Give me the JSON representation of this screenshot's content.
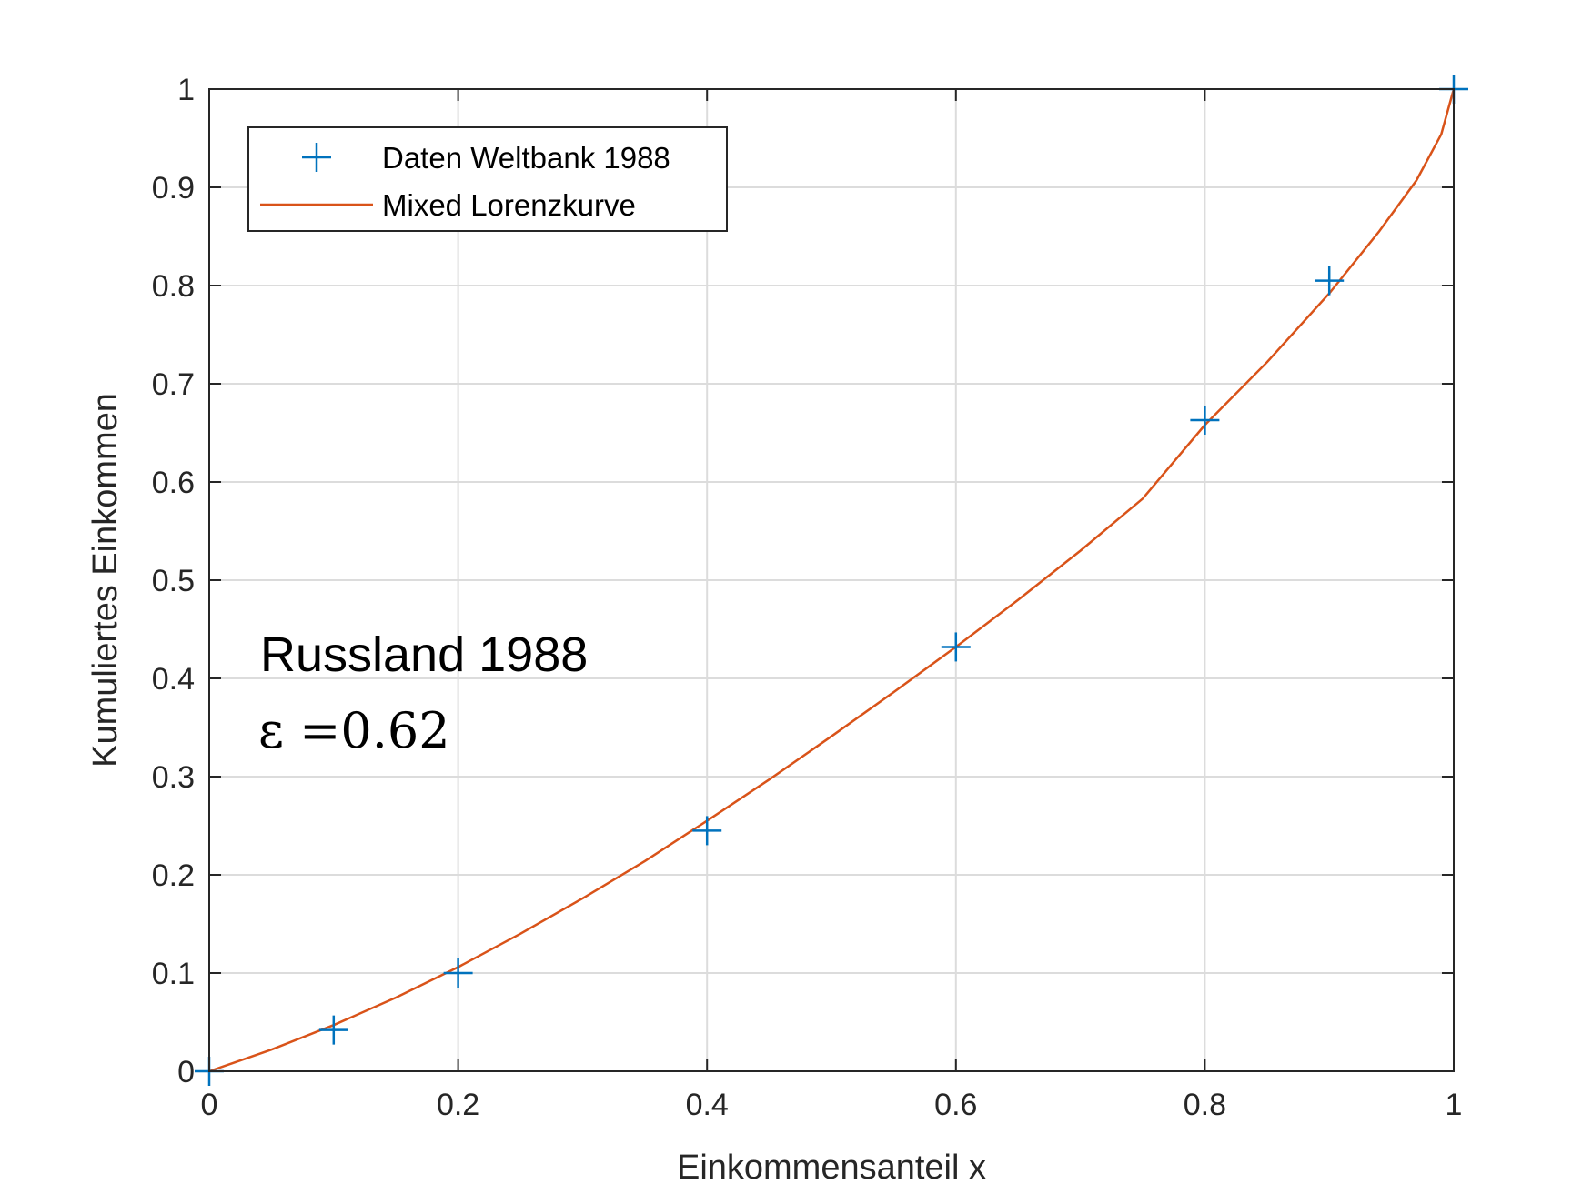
{
  "chart_data": {
    "type": "line",
    "xlabel": "Einkommensanteil x",
    "ylabel": "Kumuliertes Einkommen",
    "xlim": [
      0,
      1
    ],
    "ylim": [
      0,
      1
    ],
    "xticks": [
      0,
      0.2,
      0.4,
      0.6,
      0.8,
      1
    ],
    "xtick_labels": [
      "0",
      "0.2",
      "0.4",
      "0.6",
      "0.8",
      "1"
    ],
    "yticks": [
      0,
      0.1,
      0.2,
      0.3,
      0.4,
      0.5,
      0.6,
      0.7,
      0.8,
      0.9,
      1
    ],
    "ytick_labels": [
      "0",
      "0.1",
      "0.2",
      "0.3",
      "0.4",
      "0.5",
      "0.6",
      "0.7",
      "0.8",
      "0.9",
      "1"
    ],
    "grid": true,
    "legend_position": "top-left",
    "series": [
      {
        "name": "Daten Weltbank 1988",
        "kind": "scatter",
        "marker": "plus",
        "color": "#0072BD",
        "x": [
          0,
          0.1,
          0.2,
          0.4,
          0.6,
          0.8,
          0.9,
          1.0
        ],
        "y": [
          0,
          0.042,
          0.1,
          0.245,
          0.432,
          0.663,
          0.805,
          1.0
        ]
      },
      {
        "name": "Mixed Lorenzkurve",
        "kind": "line",
        "color": "#D95319",
        "x": [
          0,
          0.05,
          0.1,
          0.15,
          0.2,
          0.25,
          0.3,
          0.35,
          0.4,
          0.45,
          0.5,
          0.55,
          0.6,
          0.65,
          0.7,
          0.75,
          0.8,
          0.85,
          0.9,
          0.94,
          0.97,
          0.99,
          1.0
        ],
        "y": [
          0,
          0.022,
          0.047,
          0.075,
          0.106,
          0.14,
          0.176,
          0.214,
          0.255,
          0.297,
          0.341,
          0.386,
          0.432,
          0.48,
          0.53,
          0.583,
          0.658,
          0.722,
          0.792,
          0.855,
          0.907,
          0.954,
          1.0
        ]
      }
    ],
    "annotations": [
      {
        "text": "Russland 1988"
      },
      {
        "text": "ε =0.62"
      }
    ]
  }
}
